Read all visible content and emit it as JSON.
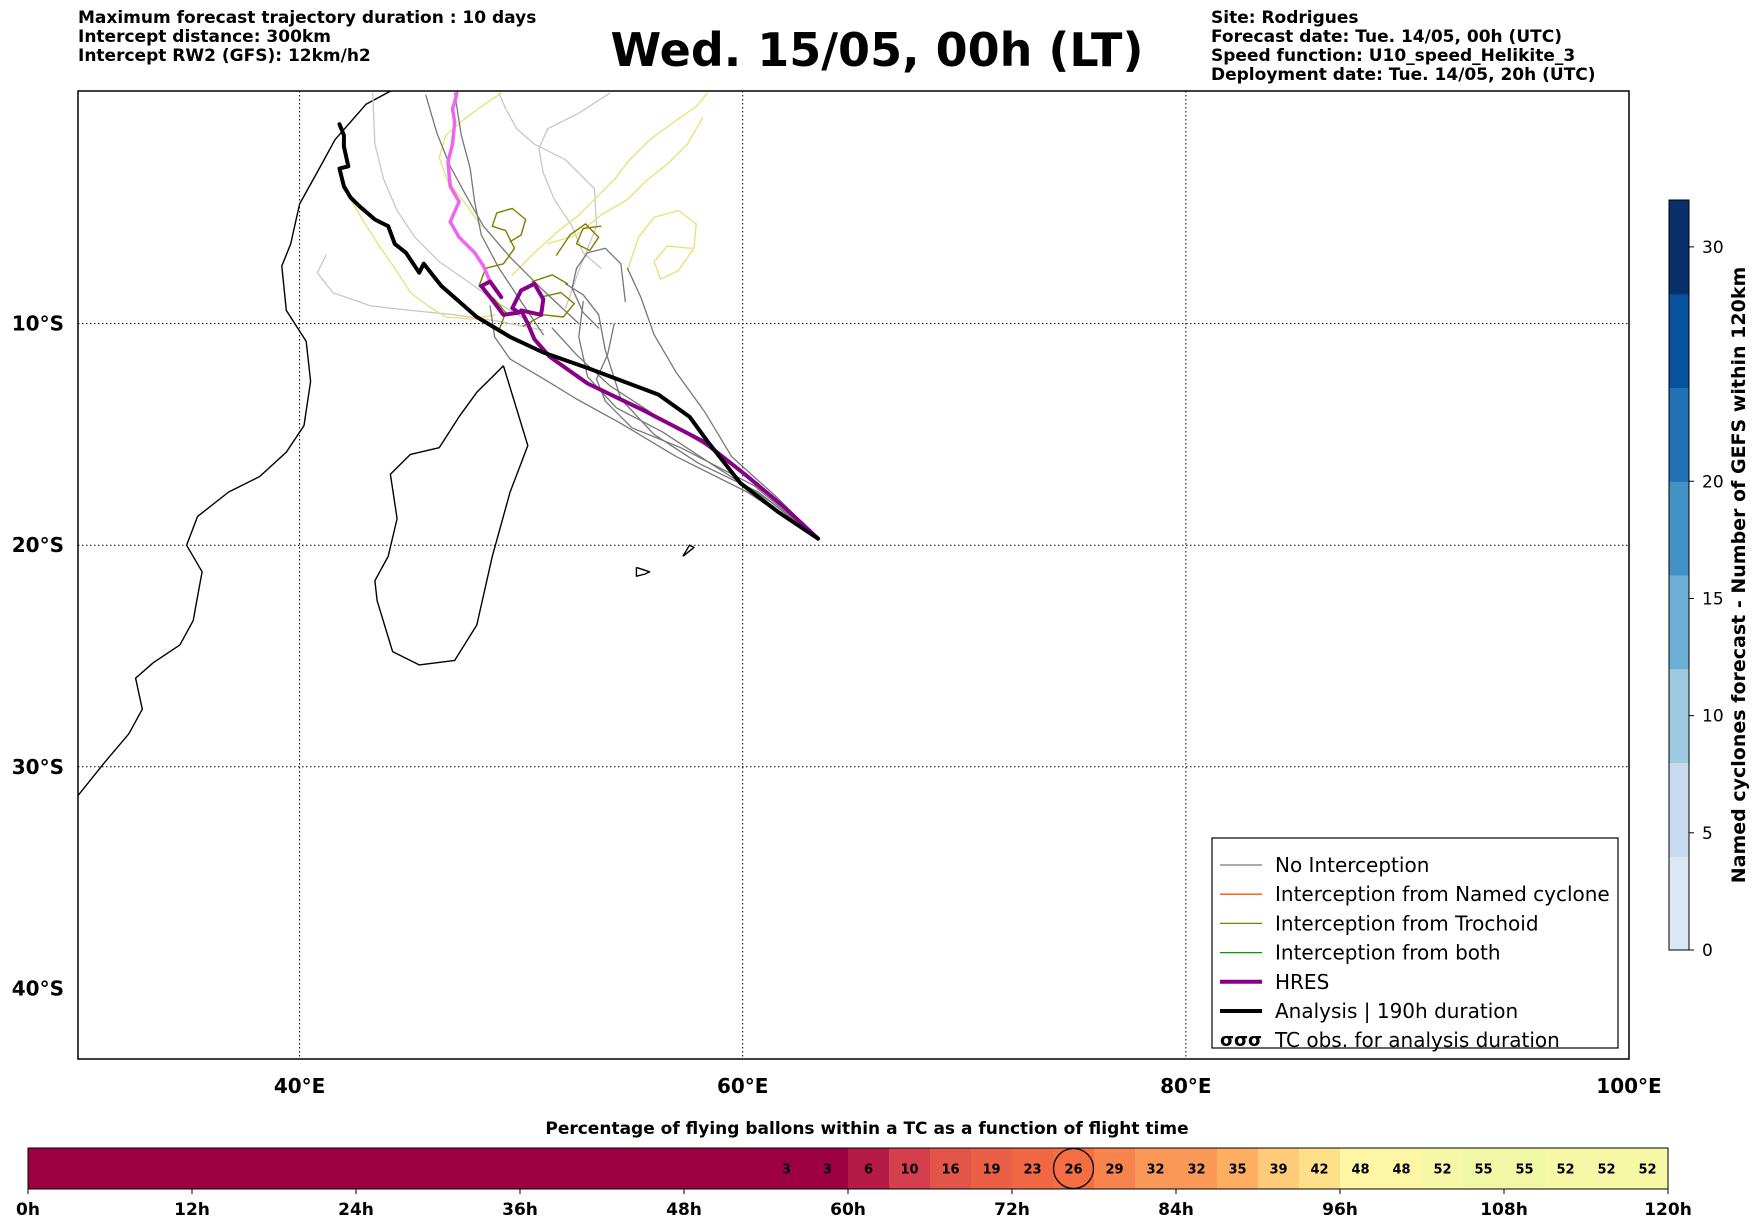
{
  "header": {
    "left": [
      "Maximum forecast trajectory duration : 10 days",
      "Intercept distance: 300km",
      "Intercept RW2 (GFS):  12km/h2"
    ],
    "title": "Wed. 15/05, 00h (LT)",
    "right": [
      "Site: Rodrigues",
      "Forecast date: Tue. 14/05, 00h (UTC)",
      "Speed function: U10_speed_Helikite_3",
      "Deployment date: Tue. 14/05, 20h (UTC)"
    ]
  },
  "chart_data": [
    {
      "type": "line",
      "subtype": "trajectory-map",
      "xlim": [
        30,
        100
      ],
      "ylim": [
        -40,
        0.5
      ],
      "x_ticks": [
        {
          "value": 40,
          "label": "40°E"
        },
        {
          "value": 60,
          "label": "60°E"
        },
        {
          "value": 80,
          "label": "80°E"
        },
        {
          "value": 100,
          "label": "100°E"
        }
      ],
      "y_ticks": [
        {
          "value": -10,
          "label": "10°S"
        },
        {
          "value": -20,
          "label": "20°S"
        },
        {
          "value": -30,
          "label": "30°S"
        },
        {
          "value": -40,
          "label": "40°S"
        }
      ],
      "grid": true,
      "launch_site": {
        "lon": 63.4,
        "lat": -19.7
      },
      "colors": {
        "no_interception": "#777777",
        "light_trajectory": "#c8c8c8",
        "yellow_trajectory": "#e8e070",
        "trochoid": "#7f7f00",
        "named_cyclone": "#ff5500",
        "both": "#009900",
        "hres": "#880088",
        "analysis": "#000000",
        "magenta": "#ee66ee"
      },
      "series": [
        {
          "name": "HRES",
          "role": "hres",
          "lon": [
            63.4,
            61.9,
            60.1,
            58.2,
            55.5,
            53.0,
            51.3,
            50.6,
            50.3,
            50.0,
            50.9,
            51.0,
            50.6,
            50.0,
            49.6,
            49.9,
            49.2,
            48.6,
            48.2,
            48.6,
            49.1
          ],
          "lat": [
            -19.7,
            -18.3,
            -16.8,
            -15.3,
            -13.9,
            -12.7,
            -11.5,
            -10.7,
            -10.0,
            -9.4,
            -9.6,
            -8.9,
            -8.2,
            -8.5,
            -9.3,
            -9.5,
            -9.6,
            -8.8,
            -8.3,
            -8.1,
            -8.8
          ]
        },
        {
          "name": "Analysis | 190h duration",
          "role": "analysis",
          "lon": [
            63.4,
            61.6,
            59.9,
            58.4,
            57.6,
            56.2,
            53.0,
            51.0,
            49.5,
            48.0,
            46.4,
            45.6,
            45.4,
            44.8,
            44.3,
            44.0,
            43.4,
            42.7,
            42.3,
            42.0,
            41.8,
            42.2,
            42.0,
            42.0,
            41.8
          ],
          "lat": [
            -19.7,
            -18.5,
            -17.2,
            -15.3,
            -14.2,
            -13.2,
            -12.0,
            -11.3,
            -10.6,
            -9.7,
            -8.3,
            -7.3,
            -7.7,
            -6.8,
            -6.4,
            -5.6,
            -5.3,
            -4.7,
            -4.3,
            -3.8,
            -3.0,
            -2.9,
            -2.0,
            -1.5,
            -1.0
          ]
        },
        {
          "name": "",
          "role": "magenta",
          "lon": [
            48.6,
            48.3,
            47.9,
            47.2,
            46.8,
            47.2,
            46.8,
            46.7,
            46.9,
            47.0,
            46.9,
            47.0,
            47.1
          ],
          "lat": [
            -8.1,
            -7.4,
            -6.8,
            -6.1,
            -5.4,
            -4.5,
            -3.8,
            -2.7,
            -1.9,
            -0.9,
            -0.3,
            0.0,
            0.4
          ]
        },
        {
          "name": "",
          "role": "no_interception",
          "lon": [
            63.4,
            61.0,
            58.5,
            56.0,
            54.0,
            52.5,
            51.4
          ],
          "lat": [
            -19.7,
            -17.5,
            -15.6,
            -14.1,
            -12.8,
            -11.4,
            -10.2
          ]
        },
        {
          "name": "",
          "role": "no_interception",
          "lon": [
            63.4,
            60.5,
            57.2,
            55.0,
            53.8,
            53.4,
            53.9,
            54.2
          ],
          "lat": [
            -19.7,
            -17.3,
            -15.6,
            -14.7,
            -13.5,
            -12.5,
            -11.4,
            -10.0
          ]
        },
        {
          "name": "",
          "role": "no_interception",
          "lon": [
            63.4,
            60.2,
            57.0,
            54.5,
            52.5,
            51.2,
            49.5,
            48.8,
            48.6
          ],
          "lat": [
            -19.7,
            -17.6,
            -16.0,
            -14.5,
            -13.4,
            -12.6,
            -11.6,
            -10.6,
            -9.2
          ]
        },
        {
          "name": "",
          "role": "no_interception",
          "lon": [
            63.4,
            61.5,
            59.5,
            58.3,
            57.0,
            56.0,
            55.4,
            54.8
          ],
          "lat": [
            -19.7,
            -17.8,
            -16.0,
            -14.0,
            -12.2,
            -10.5,
            -8.8,
            -7.5
          ]
        },
        {
          "name": "",
          "role": "no_interception",
          "lon": [
            63.4,
            61.2,
            59.0,
            56.4,
            54.3,
            53.0,
            52.6,
            52.8
          ],
          "lat": [
            -19.7,
            -18.0,
            -16.6,
            -14.9,
            -13.8,
            -12.4,
            -10.6,
            -9.0
          ]
        },
        {
          "name": "",
          "role": "no_interception",
          "lon": [
            63.4,
            60.7,
            58.0,
            56.0,
            54.5,
            53.8,
            53.5,
            52.8,
            52.0
          ],
          "lat": [
            -19.7,
            -17.6,
            -16.3,
            -15.0,
            -13.4,
            -11.2,
            -9.6,
            -8.7,
            -8.2
          ]
        },
        {
          "name": "",
          "role": "no_interception",
          "lon": [
            51.0,
            50.0,
            49.0,
            48.2,
            47.9,
            47.7,
            47.3,
            47.0
          ],
          "lat": [
            -10.5,
            -9.0,
            -7.5,
            -6.0,
            -4.5,
            -3.0,
            -1.5,
            0.4
          ]
        },
        {
          "name": "",
          "role": "no_interception",
          "lon": [
            52.6,
            51.0,
            49.5,
            48.3,
            47.5,
            46.8,
            46.2,
            45.7
          ],
          "lat": [
            -10.0,
            -8.5,
            -7.0,
            -5.6,
            -4.2,
            -2.9,
            -1.4,
            0.3
          ]
        },
        {
          "name": "",
          "role": "no_interception",
          "lon": [
            54.7,
            54.5,
            53.8,
            53.0,
            52.5,
            52.3,
            52.8,
            53.5
          ],
          "lat": [
            -9.0,
            -7.3,
            -6.6,
            -6.8,
            -7.5,
            -8.4,
            -9.5,
            -10.2
          ]
        },
        {
          "name": "",
          "role": "light_trajectory",
          "lon": [
            51.0,
            49.0,
            47.0,
            45.0,
            43.2,
            41.5,
            40.8,
            41.2
          ],
          "lat": [
            -10.3,
            -9.9,
            -9.6,
            -9.4,
            -9.2,
            -8.6,
            -7.7,
            -6.9
          ]
        },
        {
          "name": "",
          "role": "light_trajectory",
          "lon": [
            50.5,
            49.0,
            47.6,
            46.3,
            45.2,
            44.4,
            43.8,
            43.4,
            43.3
          ],
          "lat": [
            -10.0,
            -9.1,
            -8.1,
            -7.2,
            -6.1,
            -4.9,
            -3.5,
            -1.9,
            0.4
          ]
        },
        {
          "name": "",
          "role": "light_trajectory",
          "lon": [
            52.0,
            52.6,
            53.4,
            53.3,
            52.0,
            50.6,
            49.8,
            49.3,
            49.0
          ],
          "lat": [
            -9.3,
            -7.6,
            -5.6,
            -3.9,
            -2.6,
            -1.9,
            -1.2,
            -0.3,
            0.4
          ]
        },
        {
          "name": "",
          "role": "light_trajectory",
          "lon": [
            53.6,
            52.8,
            52.3,
            51.5,
            51.0,
            50.8,
            51.2,
            52.6,
            54.0
          ],
          "lat": [
            -7.5,
            -6.8,
            -5.6,
            -4.4,
            -3.2,
            -2.1,
            -1.2,
            -0.5,
            0.4
          ]
        },
        {
          "name": "",
          "role": "yellow_trajectory",
          "lon": [
            48.8,
            47.8,
            46.6,
            45.8,
            45.0,
            44.3,
            43.6,
            42.9,
            42.3,
            42.0
          ],
          "lat": [
            -9.6,
            -9.8,
            -9.7,
            -9.2,
            -8.6,
            -7.5,
            -6.5,
            -5.4,
            -4.4,
            -3.6
          ]
        },
        {
          "name": "",
          "role": "yellow_trajectory",
          "lon": [
            49.6,
            50.6,
            51.7,
            52.6,
            53.4,
            54.2,
            54.9,
            55.8,
            56.9,
            57.9,
            58.4
          ],
          "lat": [
            -7.8,
            -6.8,
            -5.8,
            -5.1,
            -4.3,
            -3.5,
            -2.6,
            -1.7,
            -0.9,
            -0.2,
            0.4
          ]
        },
        {
          "name": "",
          "role": "yellow_trajectory",
          "lon": [
            51.2,
            52.5,
            53.6,
            54.8,
            55.6,
            56.6,
            57.5,
            58.2
          ],
          "lat": [
            -6.4,
            -6.0,
            -5.1,
            -4.4,
            -3.6,
            -2.8,
            -1.9,
            -0.7
          ]
        },
        {
          "name": "",
          "role": "yellow_trajectory",
          "lon": [
            48.2,
            47.5,
            46.7,
            46.3,
            46.6,
            47.4,
            48.2,
            49.1
          ],
          "lat": [
            -5.6,
            -4.6,
            -3.6,
            -2.5,
            -1.5,
            -0.8,
            -0.2,
            0.4
          ]
        },
        {
          "name": "",
          "role": "yellow_trajectory",
          "lon": [
            54.8,
            55.3,
            56.0,
            57.1,
            57.9,
            57.8,
            57.1,
            56.3,
            56.0,
            56.6,
            57.7
          ],
          "lat": [
            -7.6,
            -6.1,
            -5.2,
            -4.9,
            -5.5,
            -6.6,
            -7.6,
            -8.0,
            -7.2,
            -6.5,
            -6.6
          ]
        },
        {
          "name": "",
          "role": "trochoid",
          "lon": [
            49.0,
            49.3,
            48.8,
            48.1,
            48.4,
            49.2,
            49.7,
            49.3,
            48.7,
            48.9,
            49.6,
            50.2,
            50.0,
            49.5
          ],
          "lat": [
            -10.3,
            -9.5,
            -8.9,
            -8.3,
            -7.5,
            -7.3,
            -6.6,
            -5.8,
            -5.6,
            -5.0,
            -4.8,
            -5.3,
            -6.0,
            -6.3
          ]
        },
        {
          "name": "",
          "role": "trochoid",
          "lon": [
            50.1,
            51.0,
            51.9,
            52.4,
            51.8,
            50.9,
            50.5,
            51.4,
            52.1
          ],
          "lat": [
            -10.1,
            -9.6,
            -9.7,
            -9.1,
            -8.6,
            -8.8,
            -8.1,
            -7.8,
            -8.2
          ]
        },
        {
          "name": "",
          "role": "trochoid",
          "lon": [
            51.6,
            52.2,
            52.9,
            53.5,
            53.1,
            52.5,
            52.8,
            53.6
          ],
          "lat": [
            -6.9,
            -6.0,
            -5.5,
            -6.1,
            -6.7,
            -6.4,
            -5.7,
            -5.6
          ]
        }
      ],
      "legend": {
        "position": "lower-right",
        "entries": [
          {
            "label": "No Interception",
            "role": "no_interception",
            "style": "thin"
          },
          {
            "label": "Interception from Named cyclone",
            "role": "named_cyclone",
            "style": "thin"
          },
          {
            "label": "Interception from Trochoid",
            "role": "trochoid",
            "style": "thin"
          },
          {
            "label": "Interception from both",
            "role": "both",
            "style": "thin"
          },
          {
            "label": "HRES",
            "role": "hres",
            "style": "thick"
          },
          {
            "label": "Analysis | 190h duration",
            "role": "analysis",
            "style": "thick"
          },
          {
            "label": "TC obs. for analysis duration",
            "role": "symbol",
            "style": "symbol"
          }
        ]
      }
    },
    {
      "type": "heatmap",
      "subtype": "colorbar",
      "title": "Named cyclones forecast - Number of GEFS within 120km",
      "range": [
        0,
        32
      ],
      "ticks": [
        0,
        5,
        10,
        15,
        20,
        30
      ],
      "colors": [
        "#dae8f6",
        "#c6dbef",
        "#9ecae1",
        "#6baed6",
        "#4292c6",
        "#2171b5",
        "#08519c",
        "#08306b"
      ]
    },
    {
      "type": "bar",
      "subtype": "percentage-strip",
      "title": "Percentage of flying ballons within a TC as a function of flight time",
      "x_ticks": [
        "0h",
        "12h",
        "24h",
        "36h",
        "48h",
        "60h",
        "72h",
        "84h",
        "96h",
        "108h",
        "120h"
      ],
      "x_range_hours": [
        0,
        120
      ],
      "step_hours": 3,
      "values": [
        0,
        0,
        0,
        0,
        0,
        0,
        0,
        0,
        0,
        0,
        0,
        0,
        0,
        0,
        0,
        0,
        0,
        0,
        3,
        3,
        6,
        10,
        16,
        19,
        23,
        26,
        29,
        32,
        32,
        35,
        39,
        42,
        48,
        48,
        52,
        55,
        55,
        52,
        52,
        52
      ],
      "highlighted_index": 25,
      "colors": {
        "zero": "#9e0142",
        "low": "#b0163f",
        "mid": "#f46d43",
        "high": "#fee08b",
        "top": "#f7f9a6"
      }
    }
  ],
  "coastlines": [
    {
      "role": "africa-coast",
      "lon": [
        30.0,
        31.2,
        32.3,
        32.9,
        32.6,
        33.4,
        34.6,
        35.2,
        35.4,
        35.6,
        34.9,
        35.4,
        36.8,
        38.2,
        39.4,
        40.2,
        40.5,
        40.3,
        39.4,
        39.2,
        39.6,
        40.0,
        41.0,
        41.6,
        43.0,
        44.3,
        46.0,
        47.4,
        49.0,
        50.8,
        51.1,
        51.3,
        50.4,
        49.2,
        48.2,
        47.0,
        45.6,
        44.7,
        43.5,
        42.3,
        41.4
      ],
      "lat": [
        -31.3,
        -29.8,
        -28.5,
        -27.4,
        -26.0,
        -25.3,
        -24.5,
        -23.4,
        -22.3,
        -21.2,
        -20.0,
        -18.7,
        -17.6,
        -16.9,
        -15.8,
        -14.6,
        -12.6,
        -10.8,
        -9.4,
        -7.4,
        -6.4,
        -4.6,
        -2.8,
        -1.7,
        -0.1,
        0.6,
        0.6,
        0.6,
        0.6,
        0.6,
        0.6,
        0.6,
        0.6,
        0.6,
        0.6,
        0.6,
        0.6,
        0.6,
        0.6,
        0.6,
        0.6
      ]
    },
    {
      "role": "madagascar",
      "lon": [
        49.2,
        50.3,
        50.0,
        49.5,
        48.7,
        48.0,
        47.0,
        45.4,
        44.2,
        43.5,
        43.4,
        44.0,
        44.4,
        44.1,
        45.0,
        46.3,
        47.2,
        48.0,
        48.8,
        49.2
      ],
      "lat": [
        -11.9,
        -15.5,
        -16.3,
        -17.6,
        -20.5,
        -23.6,
        -25.2,
        -25.4,
        -24.8,
        -22.5,
        -21.6,
        -20.5,
        -18.8,
        -16.8,
        -15.9,
        -15.6,
        -14.2,
        -13.1,
        -12.3,
        -11.9
      ]
    },
    {
      "role": "mauritius",
      "lon": [
        57.3,
        57.8,
        57.6,
        57.3
      ],
      "lat": [
        -20.5,
        -20.1,
        -20.0,
        -20.5
      ]
    },
    {
      "role": "reunion",
      "lon": [
        55.2,
        55.8,
        55.6,
        55.2,
        55.2
      ],
      "lat": [
        -21.0,
        -21.2,
        -21.3,
        -21.4,
        -21.0
      ]
    }
  ]
}
